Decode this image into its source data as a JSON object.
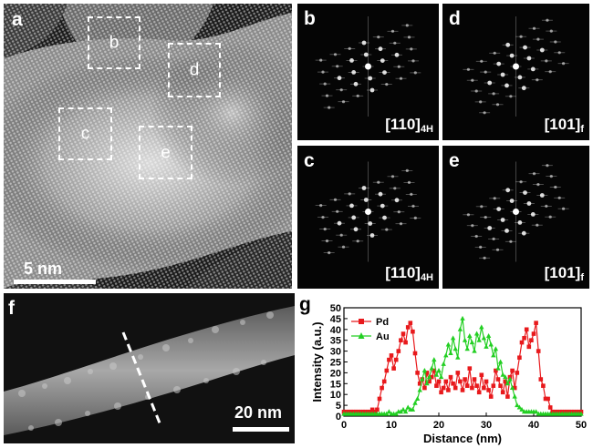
{
  "panel_a": {
    "label": "a",
    "regions": [
      "b",
      "d",
      "c",
      "e"
    ],
    "scale_text": "5 nm"
  },
  "fft_panels": [
    {
      "label": "b",
      "axis": "[110]",
      "sub": "4H"
    },
    {
      "label": "d",
      "axis": "[101]",
      "sub": "f"
    },
    {
      "label": "c",
      "axis": "[110]",
      "sub": "4H"
    },
    {
      "label": "e",
      "axis": "[101]",
      "sub": "f"
    }
  ],
  "panel_f": {
    "label": "f",
    "scale_text": "20 nm"
  },
  "panel_g": {
    "label": "g"
  },
  "chart_data": {
    "type": "line",
    "xlabel": "Distance (nm)",
    "ylabel": "Intensity (a.u.)",
    "xlim": [
      0,
      50
    ],
    "ylim": [
      0,
      50
    ],
    "xticks": [
      0,
      10,
      20,
      30,
      40,
      50
    ],
    "yticks": [
      0,
      5,
      10,
      15,
      20,
      25,
      30,
      35,
      40,
      45,
      50
    ],
    "legend_position": "top-left",
    "series": [
      {
        "name": "Pd",
        "color": "#e8191c",
        "marker": "square",
        "x": [
          0,
          0.5,
          1,
          1.5,
          2,
          2.5,
          3,
          3.5,
          4,
          4.5,
          5,
          5.5,
          6,
          6.5,
          7,
          7.5,
          8,
          8.5,
          9,
          9.5,
          10,
          10.5,
          11,
          11.5,
          12,
          12.5,
          13,
          13.5,
          14,
          14.5,
          15,
          15.5,
          16,
          16.5,
          17,
          17.5,
          18,
          18.5,
          19,
          19.5,
          20,
          20.5,
          21,
          21.5,
          22,
          22.5,
          23,
          23.5,
          24,
          24.5,
          25,
          25.5,
          26,
          26.5,
          27,
          27.5,
          28,
          28.5,
          29,
          29.5,
          30,
          30.5,
          31,
          31.5,
          32,
          32.5,
          33,
          33.5,
          34,
          34.5,
          35,
          35.5,
          36,
          36.5,
          37,
          37.5,
          38,
          38.5,
          39,
          39.5,
          40,
          40.5,
          41,
          41.5,
          42,
          42.5,
          43,
          43.5,
          44,
          44.5,
          45,
          45.5,
          46,
          46.5,
          47,
          47.5,
          48,
          48.5,
          49,
          49.5,
          50
        ],
        "y": [
          2,
          2,
          2,
          2,
          2,
          2,
          2,
          2,
          2,
          2,
          2,
          2,
          3,
          2,
          3,
          8,
          13,
          16,
          21,
          26,
          28,
          22,
          26,
          30,
          35,
          38,
          34,
          41,
          43,
          39,
          29,
          20,
          15,
          17,
          13,
          20,
          16,
          18,
          21,
          14,
          16,
          11,
          13,
          16,
          12,
          18,
          15,
          13,
          20,
          16,
          12,
          17,
          14,
          22,
          13,
          17,
          14,
          11,
          19,
          13,
          16,
          12,
          9,
          14,
          21,
          17,
          14,
          11,
          16,
          9,
          18,
          21,
          13,
          20,
          27,
          34,
          36,
          40,
          32,
          35,
          38,
          43,
          30,
          17,
          14,
          8,
          8,
          4,
          2,
          2,
          2,
          2,
          2,
          2,
          2,
          2,
          2,
          2,
          2,
          2,
          2
        ]
      },
      {
        "name": "Au",
        "color": "#22cf22",
        "marker": "triangle",
        "x": [
          0,
          0.5,
          1,
          1.5,
          2,
          2.5,
          3,
          3.5,
          4,
          4.5,
          5,
          5.5,
          6,
          6.5,
          7,
          7.5,
          8,
          8.5,
          9,
          9.5,
          10,
          10.5,
          11,
          11.5,
          12,
          12.5,
          13,
          13.5,
          14,
          14.5,
          15,
          15.5,
          16,
          16.5,
          17,
          17.5,
          18,
          18.5,
          19,
          19.5,
          20,
          20.5,
          21,
          21.5,
          22,
          22.5,
          23,
          23.5,
          24,
          24.5,
          25,
          25.5,
          26,
          26.5,
          27,
          27.5,
          28,
          28.5,
          29,
          29.5,
          30,
          30.5,
          31,
          31.5,
          32,
          32.5,
          33,
          33.5,
          34,
          34.5,
          35,
          35.5,
          36,
          36.5,
          37,
          37.5,
          38,
          38.5,
          39,
          39.5,
          40,
          40.5,
          41,
          41.5,
          42,
          42.5,
          43,
          43.5,
          44,
          44.5,
          45,
          45.5,
          46,
          46.5,
          47,
          47.5,
          48,
          48.5,
          49,
          49.5,
          50
        ],
        "y": [
          1,
          1,
          1,
          1,
          1,
          1,
          1,
          1,
          1,
          1,
          1,
          1,
          1,
          1,
          1,
          1,
          1,
          1,
          1,
          2,
          1,
          1,
          1,
          2,
          2,
          3,
          2,
          4,
          3,
          3,
          6,
          8,
          12,
          17,
          21,
          15,
          18,
          22,
          26,
          19,
          21,
          18,
          24,
          28,
          33,
          29,
          36,
          31,
          27,
          40,
          45,
          35,
          31,
          37,
          34,
          30,
          38,
          35,
          41,
          36,
          32,
          37,
          33,
          28,
          31,
          22,
          25,
          19,
          18,
          15,
          17,
          13,
          9,
          5,
          4,
          3,
          2,
          2,
          2,
          2,
          2,
          2,
          1,
          1,
          1,
          1,
          1,
          1,
          1,
          1,
          1,
          1,
          1,
          1,
          1,
          1,
          1,
          1,
          1,
          1,
          1
        ]
      }
    ]
  }
}
